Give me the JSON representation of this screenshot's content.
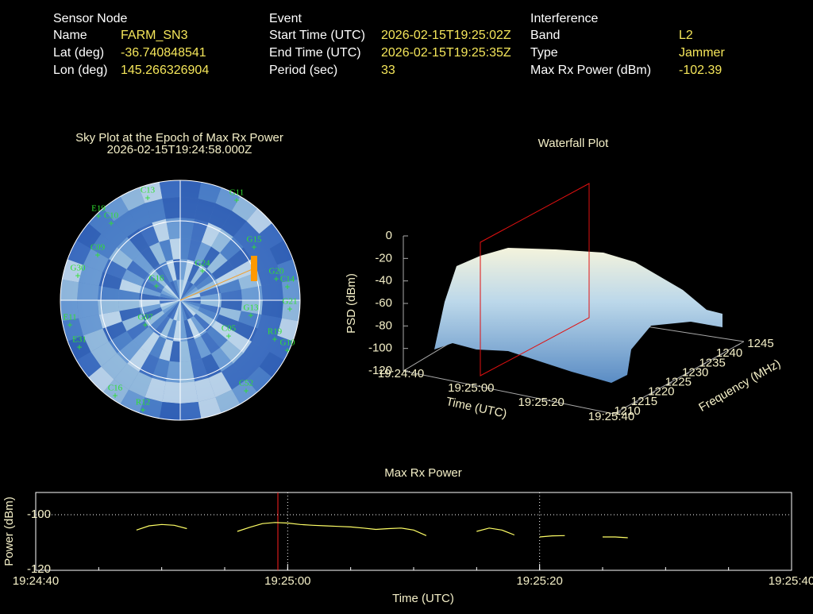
{
  "header": {
    "sensor_node": {
      "title": "Sensor Node",
      "rows": [
        [
          "Name",
          "FARM_SN3"
        ],
        [
          "Lat (deg)",
          "-36.740848541"
        ],
        [
          "Lon (deg)",
          "145.266326904"
        ]
      ]
    },
    "event": {
      "title": "Event",
      "rows": [
        [
          "Start Time (UTC)",
          "2026-02-15T19:25:02Z"
        ],
        [
          "End Time (UTC)",
          "2026-02-15T19:25:35Z"
        ],
        [
          "Period (sec)",
          "33"
        ]
      ]
    },
    "interference": {
      "title": "Interference",
      "rows": [
        [
          "Band",
          "L2"
        ],
        [
          "Type",
          "Jammer"
        ],
        [
          "Max Rx Power (dBm)",
          "-102.39"
        ]
      ]
    }
  },
  "sky_plot": {
    "title": "Sky Plot at the Epoch of Max Rx Power",
    "subtitle": "2026-02-15T19:24:58.000Z",
    "satellites": [
      "G15",
      "G20",
      "C14",
      "G21",
      "R19",
      "G10",
      "G13",
      "C05",
      "C52",
      "R12",
      "C16",
      "E31",
      "E11",
      "G30",
      "C09",
      "E19",
      "C10",
      "G11",
      "C13",
      "G24",
      "G07",
      "G16"
    ]
  },
  "waterfall": {
    "title": "Waterfall Plot",
    "z_label": "PSD (dBm)",
    "zticks": [
      0,
      -20,
      -40,
      -60,
      -80,
      -100,
      -120
    ],
    "x_label": "Time (UTC)",
    "xticks": [
      "19:24:40",
      "19:25:00",
      "19:25:20",
      "19:25:40"
    ],
    "y_label": "Frequency (MHz)",
    "yticks": [
      1210,
      1215,
      1220,
      1225,
      1230,
      1235,
      1240,
      1245
    ]
  },
  "chart_data": {
    "type": "line",
    "title": "Max Rx Power",
    "x_label": "Time (UTC)",
    "y_label": "Power (dBm)",
    "color": "#ffff66",
    "grid": true,
    "x": [
      "19:24:48",
      "19:24:49",
      "19:24:50",
      "19:24:51",
      "19:24:52",
      "19:24:53",
      "19:24:56",
      "19:24:57",
      "19:24:58",
      "19:24:59",
      "19:25:00",
      "19:25:01",
      "19:25:02",
      "19:25:03",
      "19:25:04",
      "19:25:05",
      "19:25:06",
      "19:25:07",
      "19:25:08",
      "19:25:09",
      "19:25:10",
      "19:25:11",
      "19:25:12",
      "19:25:15",
      "19:25:16",
      "19:25:17",
      "19:25:18",
      "19:25:19",
      "19:25:20",
      "19:25:21",
      "19:25:22",
      "19:25:23",
      "19:25:25",
      "19:25:26",
      "19:25:27"
    ],
    "values": [
      -105.5,
      -104.0,
      -103.5,
      -103.8,
      -105.0,
      null,
      -106.0,
      -104.5,
      -103.2,
      -102.8,
      -103.0,
      -103.5,
      -103.8,
      -104.0,
      -104.2,
      -104.4,
      -104.8,
      -105.3,
      -105.0,
      -104.8,
      -105.5,
      -107.5,
      null,
      -106.0,
      -104.8,
      -105.5,
      -107.3,
      null,
      -108.0,
      -107.6,
      -107.5,
      null,
      -108.0,
      -108.0,
      -108.3
    ],
    "xlim": [
      "19:24:40",
      "19:25:40"
    ],
    "xticks": [
      "19:24:40",
      "19:25:00",
      "19:25:20",
      "19:25:40"
    ],
    "ylim": [
      -120,
      -92
    ],
    "yticks": [
      -120,
      -100
    ]
  }
}
